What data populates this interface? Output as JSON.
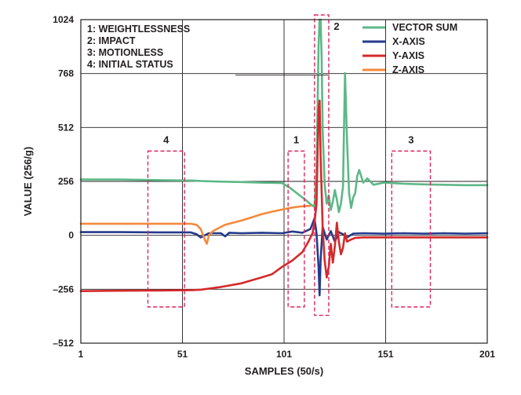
{
  "chart_data": {
    "type": "line",
    "title": "",
    "xlabel": "SAMPLES (50/s)",
    "ylabel": "VALUE (256/g)",
    "xlim": [
      1,
      201
    ],
    "ylim": [
      -512,
      1024
    ],
    "x_ticks": [
      1,
      51,
      101,
      151,
      201
    ],
    "x_tick_labels": [
      "1",
      "51",
      "101",
      "151",
      "201"
    ],
    "y_ticks": [
      -512,
      -256,
      0,
      256,
      512,
      768,
      1024
    ],
    "y_tick_labels": [
      "–512",
      "–256",
      "0",
      "256",
      "512",
      "768",
      "1024"
    ],
    "grid": true,
    "legend_position": "top-right",
    "annotations": [
      "1: WEIGHTLESSNESS",
      "2: IMPACT",
      "3: MOTIONLESS",
      "4: INITIAL STATUS"
    ],
    "regions": [
      {
        "label": "4",
        "x_start": 34,
        "x_end": 52,
        "y_start": -340,
        "y_end": 400
      },
      {
        "label": "1",
        "x_start": 103,
        "x_end": 111,
        "y_start": -340,
        "y_end": 400
      },
      {
        "label": "2",
        "x_start": 116,
        "x_end": 123,
        "y_start": -380,
        "y_end": 1060
      },
      {
        "label": "3",
        "x_start": 154,
        "x_end": 173,
        "y_start": -340,
        "y_end": 400
      }
    ],
    "series": [
      {
        "name": "VECTOR SUM",
        "color": "#5db887",
        "x": [
          1,
          20,
          40,
          56,
          60,
          70,
          80,
          90,
          100,
          104,
          108,
          112,
          114,
          116,
          117,
          118,
          118.5,
          119,
          119.5,
          120,
          121,
          122,
          123,
          124,
          125,
          126,
          127,
          128,
          129,
          130,
          131,
          132,
          133,
          134,
          135,
          136,
          137,
          138,
          140,
          142,
          145,
          150,
          160,
          170,
          180,
          190,
          201
        ],
        "y": [
          265,
          265,
          262,
          260,
          258,
          255,
          253,
          250,
          248,
          225,
          195,
          165,
          148,
          135,
          300,
          900,
          1024,
          1024,
          850,
          500,
          240,
          150,
          190,
          120,
          160,
          215,
          170,
          110,
          150,
          230,
          770,
          450,
          200,
          130,
          180,
          200,
          280,
          310,
          250,
          270,
          240,
          250,
          245,
          242,
          240,
          238,
          238
        ]
      },
      {
        "name": "X-AXIS",
        "color": "#243a8c",
        "x": [
          1,
          20,
          40,
          55,
          58,
          60,
          62,
          64,
          70,
          72,
          74,
          80,
          90,
          100,
          105,
          110,
          114,
          116,
          117,
          118,
          118.5,
          119,
          120,
          121,
          122,
          124,
          126,
          128,
          130,
          132,
          135,
          140,
          150,
          160,
          170,
          180,
          190,
          201
        ],
        "y": [
          15,
          15,
          14,
          14,
          5,
          -10,
          0,
          10,
          10,
          -5,
          12,
          10,
          12,
          10,
          18,
          12,
          30,
          80,
          10,
          -150,
          -285,
          -120,
          40,
          10,
          -20,
          20,
          -30,
          15,
          5,
          -10,
          8,
          10,
          8,
          10,
          8,
          10,
          8,
          10
        ]
      },
      {
        "name": "Y-AXIS",
        "color": "#d42a2a",
        "x": [
          1,
          20,
          40,
          56,
          60,
          70,
          80,
          90,
          95,
          100,
          105,
          110,
          113,
          115,
          116,
          117,
          118,
          118.5,
          119,
          120,
          121,
          122,
          123,
          124,
          125,
          126,
          127,
          128,
          129,
          130,
          131,
          132,
          134,
          136,
          140,
          150,
          160,
          170,
          180,
          190,
          201
        ],
        "y": [
          -265,
          -263,
          -262,
          -260,
          -258,
          -245,
          -228,
          -200,
          -185,
          -150,
          -120,
          -80,
          -30,
          10,
          60,
          150,
          600,
          640,
          380,
          40,
          -120,
          -200,
          -150,
          -40,
          -130,
          -50,
          60,
          -30,
          -90,
          -60,
          10,
          -30,
          -20,
          -12,
          -10,
          -10,
          -10,
          -10,
          -10,
          -10,
          -10
        ]
      },
      {
        "name": "Z-AXIS",
        "color": "#f38a3c",
        "x": [
          1,
          20,
          40,
          55,
          58,
          60,
          62,
          63,
          64,
          66,
          70,
          72,
          74,
          80,
          85,
          90,
          95,
          100,
          105,
          110,
          114
        ],
        "y": [
          55,
          55,
          55,
          55,
          50,
          30,
          -20,
          -40,
          0,
          20,
          40,
          50,
          55,
          70,
          85,
          100,
          112,
          122,
          132,
          138,
          140
        ]
      }
    ]
  }
}
